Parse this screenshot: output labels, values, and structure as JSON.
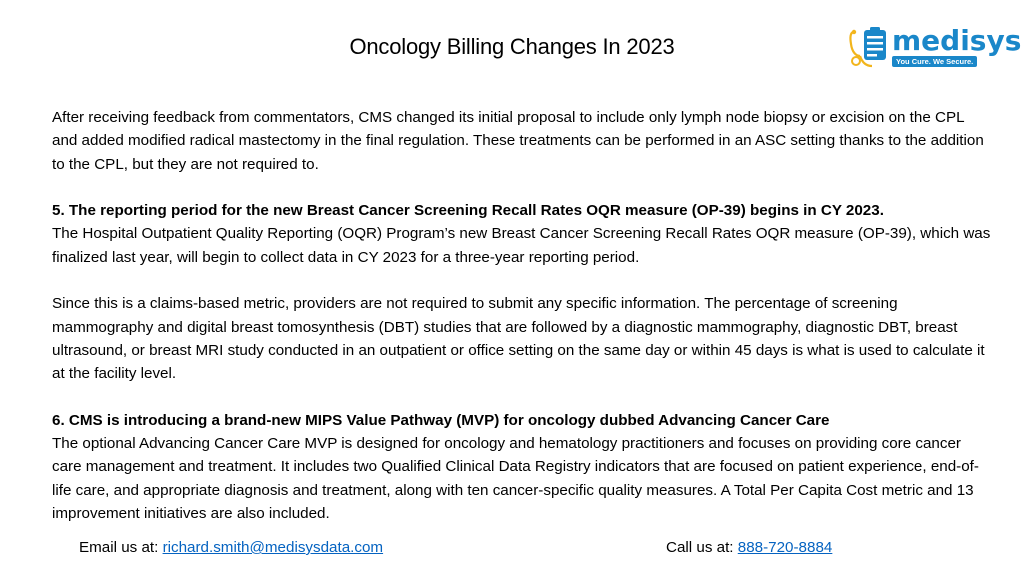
{
  "title": "Oncology Billing Changes In 2023",
  "logo": {
    "wordmark": "medisys",
    "tagline": "You Cure. We Secure.",
    "brand_color": "#1a87c9",
    "accent_color": "#f2b51c"
  },
  "paragraphs": {
    "p1": "After receiving feedback from commentators, CMS changed its initial proposal to include only lymph node biopsy or excision on the CPL and added modified radical mastectomy in the final regulation. These treatments can be performed in an ASC setting thanks to the addition to the CPL, but they are not required to.",
    "h5": "5.  The reporting period for the new Breast Cancer Screening Recall Rates OQR measure (OP-39) begins in CY 2023.",
    "p5": "The Hospital Outpatient Quality Reporting (OQR) Program’s new Breast Cancer Screening Recall Rates OQR measure (OP-39), which was finalized last year, will begin to collect data in CY 2023 for a three-year reporting period.",
    "p6": "Since this is a claims-based metric, providers are not required to submit any specific information. The percentage of screening mammography and digital breast tomosynthesis (DBT) studies that are followed by a diagnostic mammography, diagnostic DBT, breast ultrasound, or breast MRI study conducted in an outpatient or office setting on the same day or within 45 days is what is used to calculate it at the facility level.",
    "h6": "6.  CMS is introducing a brand-new MIPS Value Pathway (MVP) for oncology dubbed Advancing Cancer Care",
    "p7": "The optional Advancing Cancer Care MVP is designed for oncology and hematology practitioners and focuses on providing core cancer care management and treatment. It includes two Qualified Clinical Data Registry indicators that are focused on patient experience, end-of-life care, and appropriate diagnosis and treatment, along with ten cancer-specific quality measures. A Total Per Capita Cost metric and 13 improvement initiatives are also included."
  },
  "footer": {
    "email_label": "Email us at: ",
    "email": "richard.smith@medisysdata.com",
    "phone_label": "Call us at: ",
    "phone": "888-720-8884",
    "link_color": "#0563c1"
  }
}
